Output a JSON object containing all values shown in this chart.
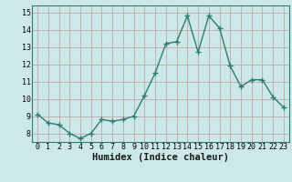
{
  "x": [
    0,
    1,
    2,
    3,
    4,
    5,
    6,
    7,
    8,
    9,
    10,
    11,
    12,
    13,
    14,
    15,
    16,
    17,
    18,
    19,
    20,
    21,
    22,
    23
  ],
  "y": [
    9.1,
    8.6,
    8.5,
    8.0,
    7.7,
    8.0,
    8.8,
    8.7,
    8.8,
    9.0,
    10.2,
    11.5,
    13.2,
    13.3,
    14.8,
    12.7,
    14.8,
    14.1,
    11.9,
    10.7,
    11.1,
    11.1,
    10.1,
    9.5
  ],
  "line_color": "#2e7d6e",
  "bg_color": "#cce8e8",
  "grid_color": "#c0a8a8",
  "xlabel": "Humidex (Indice chaleur)",
  "ylim": [
    7.5,
    15.4
  ],
  "xlim": [
    -0.5,
    23.5
  ],
  "yticks": [
    8,
    9,
    10,
    11,
    12,
    13,
    14,
    15
  ],
  "xticks": [
    0,
    1,
    2,
    3,
    4,
    5,
    6,
    7,
    8,
    9,
    10,
    11,
    12,
    13,
    14,
    15,
    16,
    17,
    18,
    19,
    20,
    21,
    22,
    23
  ],
  "marker": "+",
  "linewidth": 1.0,
  "markersize": 4,
  "tick_fontsize": 6.0,
  "xlabel_fontsize": 7.5
}
